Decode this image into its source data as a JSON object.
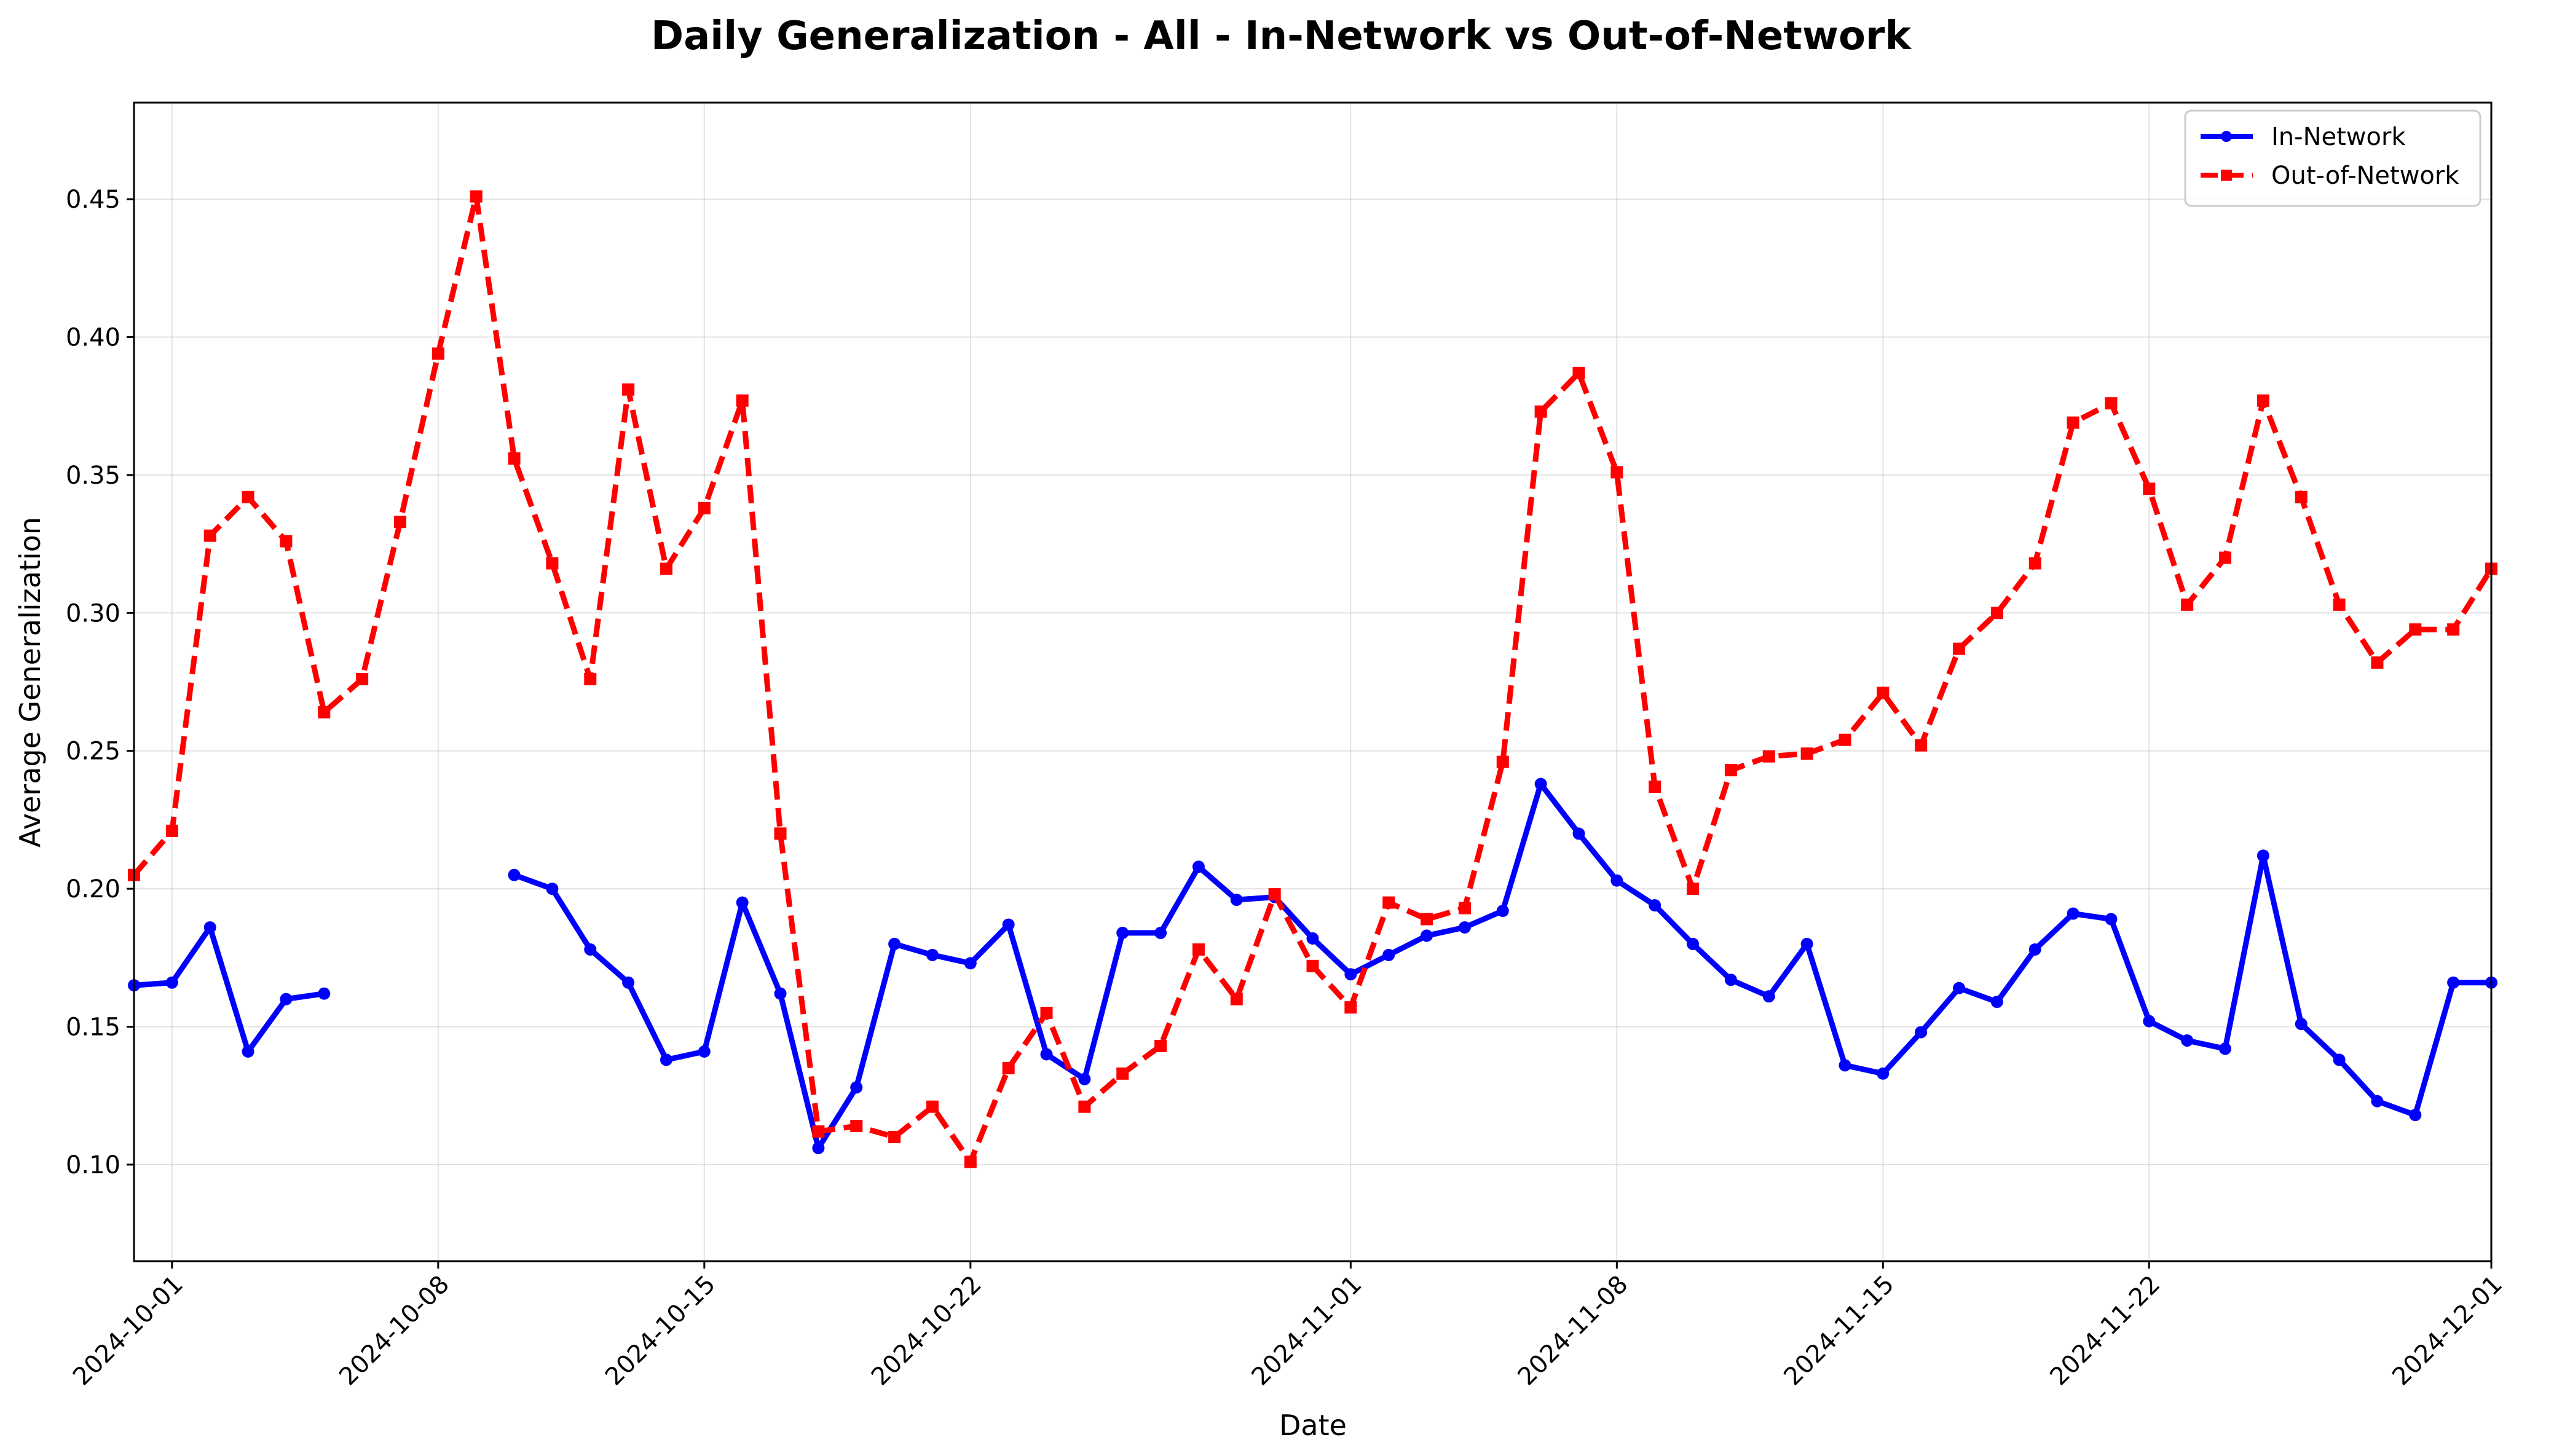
{
  "chart_data": {
    "type": "line",
    "title": "Daily Generalization - All - In-Network vs Out-of-Network",
    "xlabel": "Date",
    "ylabel": "Average Generalization",
    "xlim": [
      "2024-09-30",
      "2024-12-01"
    ],
    "ylim": [
      0.065,
      0.485
    ],
    "grid": true,
    "legend_position": "top-right",
    "x_ticks": [
      "2024-10-01",
      "2024-10-08",
      "2024-10-15",
      "2024-10-22",
      "2024-11-01",
      "2024-11-08",
      "2024-11-15",
      "2024-11-22",
      "2024-12-01"
    ],
    "y_ticks": [
      "0.10",
      "0.15",
      "0.20",
      "0.25",
      "0.30",
      "0.35",
      "0.40",
      "0.45"
    ],
    "series": [
      {
        "name": "In-Network",
        "color": "#0000ff",
        "style": "solid",
        "marker": "circle",
        "points": [
          [
            "2024-09-30",
            0.165
          ],
          [
            "2024-10-01",
            0.166
          ],
          [
            "2024-10-02",
            0.186
          ],
          [
            "2024-10-03",
            0.141
          ],
          [
            "2024-10-04",
            0.16
          ],
          [
            "2024-10-05",
            0.162
          ],
          [
            "2024-10-10",
            0.205
          ],
          [
            "2024-10-11",
            0.2
          ],
          [
            "2024-10-12",
            0.178
          ],
          [
            "2024-10-13",
            0.166
          ],
          [
            "2024-10-14",
            0.138
          ],
          [
            "2024-10-15",
            0.141
          ],
          [
            "2024-10-16",
            0.195
          ],
          [
            "2024-10-17",
            0.162
          ],
          [
            "2024-10-18",
            0.106
          ],
          [
            "2024-10-19",
            0.128
          ],
          [
            "2024-10-20",
            0.18
          ],
          [
            "2024-10-21",
            0.176
          ],
          [
            "2024-10-22",
            0.173
          ],
          [
            "2024-10-23",
            0.187
          ],
          [
            "2024-10-24",
            0.14
          ],
          [
            "2024-10-25",
            0.131
          ],
          [
            "2024-10-26",
            0.184
          ],
          [
            "2024-10-27",
            0.184
          ],
          [
            "2024-10-28",
            0.208
          ],
          [
            "2024-10-29",
            0.196
          ],
          [
            "2024-10-30",
            0.197
          ],
          [
            "2024-10-31",
            0.182
          ],
          [
            "2024-11-01",
            0.169
          ],
          [
            "2024-11-02",
            0.176
          ],
          [
            "2024-11-03",
            0.183
          ],
          [
            "2024-11-04",
            0.186
          ],
          [
            "2024-11-05",
            0.192
          ],
          [
            "2024-11-06",
            0.238
          ],
          [
            "2024-11-07",
            0.22
          ],
          [
            "2024-11-08",
            0.203
          ],
          [
            "2024-11-09",
            0.194
          ],
          [
            "2024-11-10",
            0.18
          ],
          [
            "2024-11-11",
            0.167
          ],
          [
            "2024-11-12",
            0.161
          ],
          [
            "2024-11-13",
            0.18
          ],
          [
            "2024-11-14",
            0.136
          ],
          [
            "2024-11-15",
            0.133
          ],
          [
            "2024-11-16",
            0.148
          ],
          [
            "2024-11-17",
            0.164
          ],
          [
            "2024-11-18",
            0.159
          ],
          [
            "2024-11-19",
            0.178
          ],
          [
            "2024-11-20",
            0.191
          ],
          [
            "2024-11-21",
            0.189
          ],
          [
            "2024-11-22",
            0.152
          ],
          [
            "2024-11-23",
            0.145
          ],
          [
            "2024-11-24",
            0.142
          ],
          [
            "2024-11-25",
            0.212
          ],
          [
            "2024-11-26",
            0.151
          ],
          [
            "2024-11-27",
            0.138
          ],
          [
            "2024-11-28",
            0.123
          ],
          [
            "2024-11-29",
            0.118
          ],
          [
            "2024-11-30",
            0.166
          ],
          [
            "2024-12-01",
            0.166
          ]
        ]
      },
      {
        "name": "Out-of-Network",
        "color": "#ff0000",
        "style": "dashed",
        "marker": "square",
        "points": [
          [
            "2024-09-30",
            0.205
          ],
          [
            "2024-10-01",
            0.221
          ],
          [
            "2024-10-02",
            0.328
          ],
          [
            "2024-10-03",
            0.342
          ],
          [
            "2024-10-04",
            0.326
          ],
          [
            "2024-10-05",
            0.264
          ],
          [
            "2024-10-06",
            0.276
          ],
          [
            "2024-10-07",
            0.333
          ],
          [
            "2024-10-08",
            0.394
          ],
          [
            "2024-10-09",
            0.451
          ],
          [
            "2024-10-10",
            0.356
          ],
          [
            "2024-10-11",
            0.318
          ],
          [
            "2024-10-12",
            0.276
          ],
          [
            "2024-10-13",
            0.381
          ],
          [
            "2024-10-14",
            0.316
          ],
          [
            "2024-10-15",
            0.338
          ],
          [
            "2024-10-16",
            0.377
          ],
          [
            "2024-10-17",
            0.22
          ],
          [
            "2024-10-18",
            0.112
          ],
          [
            "2024-10-19",
            0.114
          ],
          [
            "2024-10-20",
            0.11
          ],
          [
            "2024-10-21",
            0.121
          ],
          [
            "2024-10-22",
            0.101
          ],
          [
            "2024-10-23",
            0.135
          ],
          [
            "2024-10-24",
            0.155
          ],
          [
            "2024-10-25",
            0.121
          ],
          [
            "2024-10-26",
            0.133
          ],
          [
            "2024-10-27",
            0.143
          ],
          [
            "2024-10-28",
            0.178
          ],
          [
            "2024-10-29",
            0.16
          ],
          [
            "2024-10-30",
            0.198
          ],
          [
            "2024-10-31",
            0.172
          ],
          [
            "2024-11-01",
            0.157
          ],
          [
            "2024-11-02",
            0.195
          ],
          [
            "2024-11-03",
            0.189
          ],
          [
            "2024-11-04",
            0.193
          ],
          [
            "2024-11-05",
            0.246
          ],
          [
            "2024-11-06",
            0.373
          ],
          [
            "2024-11-07",
            0.387
          ],
          [
            "2024-11-08",
            0.351
          ],
          [
            "2024-11-09",
            0.237
          ],
          [
            "2024-11-10",
            0.2
          ],
          [
            "2024-11-11",
            0.243
          ],
          [
            "2024-11-12",
            0.248
          ],
          [
            "2024-11-13",
            0.249
          ],
          [
            "2024-11-14",
            0.254
          ],
          [
            "2024-11-15",
            0.271
          ],
          [
            "2024-11-16",
            0.252
          ],
          [
            "2024-11-17",
            0.287
          ],
          [
            "2024-11-18",
            0.3
          ],
          [
            "2024-11-19",
            0.318
          ],
          [
            "2024-11-20",
            0.369
          ],
          [
            "2024-11-21",
            0.376
          ],
          [
            "2024-11-22",
            0.345
          ],
          [
            "2024-11-23",
            0.303
          ],
          [
            "2024-11-24",
            0.32
          ],
          [
            "2024-11-25",
            0.377
          ],
          [
            "2024-11-26",
            0.342
          ],
          [
            "2024-11-27",
            0.303
          ],
          [
            "2024-11-28",
            0.282
          ],
          [
            "2024-11-29",
            0.294
          ],
          [
            "2024-11-30",
            0.294
          ],
          [
            "2024-12-01",
            0.316
          ]
        ]
      }
    ]
  }
}
